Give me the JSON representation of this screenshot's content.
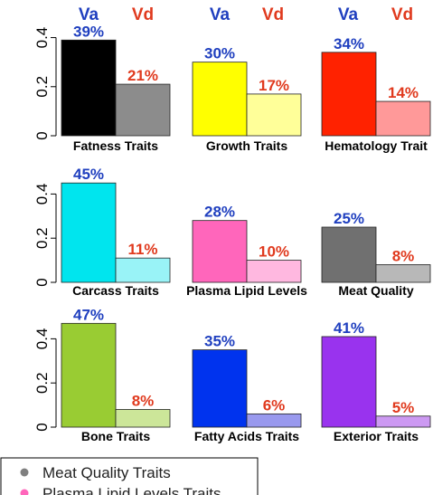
{
  "headers": {
    "va": "Va",
    "vd": "Vd"
  },
  "colors": {
    "va_header": "#1f3fbf",
    "vd_header": "#e03a1e"
  },
  "chart_data": [
    {
      "type": "bar",
      "xlabel": "Fatness Traits",
      "categories": [
        "Va",
        "Vd"
      ],
      "values": [
        0.39,
        0.21
      ],
      "labels": [
        "39%",
        "21%"
      ],
      "colors": [
        "#000000",
        "#8c8c8c"
      ],
      "ylim": [
        0,
        0.45
      ],
      "yticks": [
        "0",
        "0.2",
        "0.4"
      ]
    },
    {
      "type": "bar",
      "xlabel": "Growth Traits",
      "categories": [
        "Va",
        "Vd"
      ],
      "values": [
        0.3,
        0.17
      ],
      "labels": [
        "30%",
        "17%"
      ],
      "colors": [
        "#ffff00",
        "#ffff99"
      ],
      "ylim": [
        0,
        0.45
      ],
      "yticks": [
        "0",
        "0.2",
        "0.4"
      ]
    },
    {
      "type": "bar",
      "xlabel": "Hematology Trait",
      "categories": [
        "Va",
        "Vd"
      ],
      "values": [
        0.34,
        0.14
      ],
      "labels": [
        "34%",
        "14%"
      ],
      "colors": [
        "#ff2200",
        "#ff9999"
      ],
      "ylim": [
        0,
        0.45
      ],
      "yticks": [
        "0",
        "0.2",
        "0.4"
      ]
    },
    {
      "type": "bar",
      "xlabel": "Carcass Traits",
      "categories": [
        "Va",
        "Vd"
      ],
      "values": [
        0.45,
        0.11
      ],
      "labels": [
        "45%",
        "11%"
      ],
      "colors": [
        "#00e5ee",
        "#99f3f7"
      ],
      "ylim": [
        0,
        0.5
      ],
      "yticks": [
        "0",
        "0.2",
        "0.4"
      ]
    },
    {
      "type": "bar",
      "xlabel": "Plasma Lipid Levels",
      "categories": [
        "Va",
        "Vd"
      ],
      "values": [
        0.28,
        0.1
      ],
      "labels": [
        "28%",
        "10%"
      ],
      "colors": [
        "#ff66bb",
        "#ffb8e0"
      ],
      "ylim": [
        0,
        0.5
      ],
      "yticks": [
        "0",
        "0.2",
        "0.4"
      ]
    },
    {
      "type": "bar",
      "xlabel": "Meat Quality",
      "categories": [
        "Va",
        "Vd"
      ],
      "values": [
        0.25,
        0.08
      ],
      "labels": [
        "25%",
        "8%"
      ],
      "colors": [
        "#707070",
        "#b8b8b8"
      ],
      "ylim": [
        0,
        0.5
      ],
      "yticks": [
        "0",
        "0.2",
        "0.4"
      ]
    },
    {
      "type": "bar",
      "xlabel": "Bone Traits",
      "categories": [
        "Va",
        "Vd"
      ],
      "values": [
        0.47,
        0.08
      ],
      "labels": [
        "47%",
        "8%"
      ],
      "colors": [
        "#99cc33",
        "#cce699"
      ],
      "ylim": [
        0,
        0.5
      ],
      "yticks": [
        "0",
        "0.2",
        "0.4"
      ]
    },
    {
      "type": "bar",
      "xlabel": "Fatty Acids Traits",
      "categories": [
        "Va",
        "Vd"
      ],
      "values": [
        0.35,
        0.06
      ],
      "labels": [
        "35%",
        "6%"
      ],
      "colors": [
        "#0033ee",
        "#9999ee"
      ],
      "ylim": [
        0,
        0.5
      ],
      "yticks": [
        "0",
        "0.2",
        "0.4"
      ]
    },
    {
      "type": "bar",
      "xlabel": "Exterior Traits",
      "categories": [
        "Va",
        "Vd"
      ],
      "values": [
        0.41,
        0.05
      ],
      "labels": [
        "41%",
        "5%"
      ],
      "colors": [
        "#9933ee",
        "#cc99f2"
      ],
      "ylim": [
        0,
        0.5
      ],
      "yticks": [
        "0",
        "0.2",
        "0.4"
      ]
    }
  ],
  "legend": [
    {
      "label": "Meat Quality Traits",
      "color": "#808080"
    },
    {
      "label": "Plasma Lipid Levels Traits",
      "color": "#ff66bb"
    }
  ]
}
